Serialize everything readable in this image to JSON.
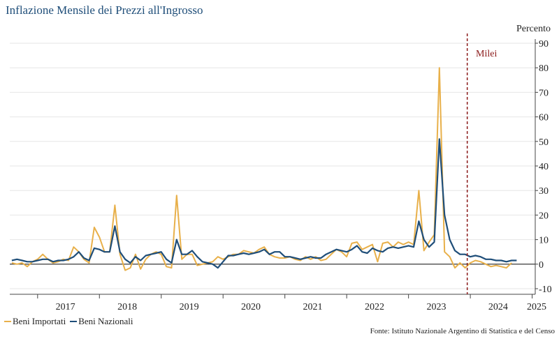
{
  "chart_data": {
    "type": "line",
    "title": "Inflazione Mensile dei Prezzi all'Ingrosso",
    "ylabel": "Percento",
    "ylim": [
      -10,
      90
    ],
    "yticks": [
      -10,
      0,
      10,
      20,
      30,
      40,
      50,
      60,
      70,
      80,
      90
    ],
    "xlim": [
      2016.55,
      2025.05
    ],
    "x_ticks": [
      2017,
      2018,
      2019,
      2020,
      2021,
      2022,
      2023,
      2024,
      2025
    ],
    "annotation": {
      "label": "Milei",
      "x": 2023.95,
      "color": "#8b1a1a"
    },
    "source": "Fonte: Istituto Nazionale Argentino di Statistica e del Censo",
    "series": [
      {
        "name": "Beni Importati",
        "color": "#e8b04a",
        "start": 2016.583,
        "values": [
          0.5,
          0,
          0.5,
          -1,
          1,
          2,
          4,
          2,
          0.5,
          1,
          2,
          1.5,
          7,
          5,
          2,
          0.5,
          15,
          11,
          5,
          5,
          24,
          4,
          -2.5,
          -1.5,
          4,
          -2,
          2,
          4,
          5,
          4,
          -1,
          -1.5,
          28,
          2,
          4,
          4,
          -0.5,
          0,
          0.5,
          1,
          3,
          2,
          3,
          4,
          4,
          5.5,
          5,
          4.5,
          6,
          7,
          4,
          3,
          2.5,
          2.5,
          3,
          2,
          1.5,
          3,
          2,
          3,
          1.5,
          2,
          4,
          6,
          5,
          3,
          8.5,
          9,
          6,
          7,
          8,
          1,
          8.5,
          9,
          7,
          9,
          8,
          9,
          8,
          30,
          5.5,
          9,
          12,
          80,
          5,
          3,
          -1.5,
          0.5,
          -1.5,
          0.5,
          1.5,
          1,
          0,
          -1,
          -0.5,
          -1,
          -1.5,
          0.5
        ]
      },
      {
        "name": "Beni Nazionali",
        "color": "#1f4e79",
        "start": 2016.583,
        "values": [
          1.5,
          2,
          1.5,
          1,
          1,
          1.5,
          2,
          2,
          1,
          1.5,
          1.5,
          2,
          3,
          5,
          2.5,
          1.5,
          6.5,
          6,
          5,
          5,
          15.5,
          5,
          2,
          0.5,
          3,
          1.5,
          3.5,
          4,
          4.5,
          5,
          2,
          0.5,
          10,
          4,
          4,
          5.5,
          3,
          1,
          0.5,
          0,
          -1.5,
          1,
          3.5,
          3.5,
          4,
          4.5,
          4,
          4.5,
          5,
          6,
          4,
          5,
          5,
          3,
          3,
          2.5,
          2,
          2.5,
          3,
          2.5,
          2.5,
          4,
          5,
          6,
          5.5,
          5,
          6,
          7.5,
          5,
          4.5,
          6.5,
          5.5,
          5,
          6.5,
          7,
          6.5,
          7,
          7.5,
          7,
          17.5,
          10,
          7,
          9,
          51,
          20,
          10,
          5.5,
          4,
          4,
          3,
          3.5,
          3,
          2,
          2,
          1.5,
          1.5,
          1,
          1.5,
          1.5
        ]
      }
    ]
  }
}
